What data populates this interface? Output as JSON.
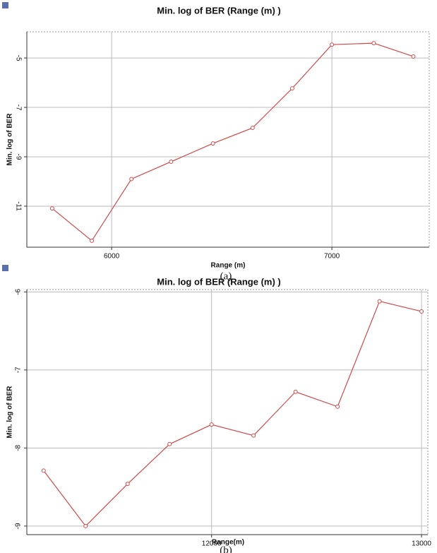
{
  "chart_data": [
    {
      "type": "line",
      "title": "Min. log of BER (Range (m) )",
      "x_label": "Range (m)",
      "y_label": "Min. log of BER",
      "caption": "(a)",
      "x": [
        5730,
        5910,
        6090,
        6270,
        6460,
        6640,
        6820,
        7000,
        7190,
        7370
      ],
      "values": [
        -11.09,
        -12.4,
        -9.9,
        -9.2,
        -8.46,
        -7.83,
        -6.23,
        -4.46,
        -4.4,
        -4.94
      ],
      "color": "#d04848",
      "xlim": [
        5615,
        7442
      ],
      "ylim": [
        -3.94,
        -12.66
      ],
      "xticks": [
        6000,
        7000
      ],
      "yticks": [
        -5,
        -7,
        -9,
        -11
      ],
      "grid": true
    },
    {
      "type": "line",
      "title": "Min. log of BER (Range (m) )",
      "x_label": "Range(m)",
      "y_label": "Min. log of BER",
      "caption": "(b)",
      "x": [
        11200,
        11400,
        11600,
        11800,
        12000,
        12200,
        12400,
        12600,
        12800,
        13000
      ],
      "values": [
        -8.29,
        -9.0,
        -8.46,
        -7.95,
        -7.7,
        -7.84,
        -7.28,
        -7.47,
        -6.12,
        -6.25
      ],
      "color": "#d04848",
      "xlim": [
        11120,
        13030
      ],
      "ylim": [
        -5.97,
        -9.11
      ],
      "xticks": [
        12000,
        13000
      ],
      "yticks": [
        -6,
        -7,
        -8,
        -9
      ],
      "grid": true
    }
  ]
}
